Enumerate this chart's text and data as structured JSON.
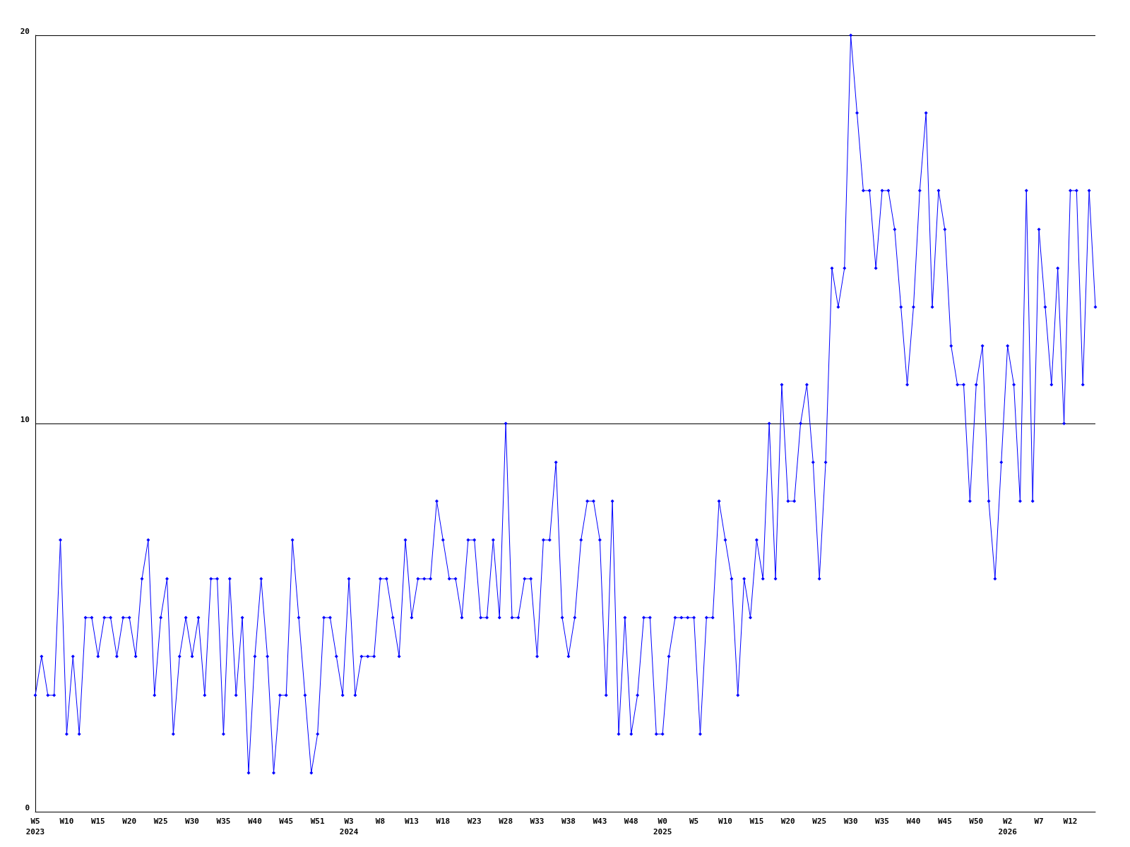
{
  "chart_data": {
    "type": "line",
    "categories": [
      "W5\n2023",
      null,
      null,
      null,
      null,
      "W10",
      null,
      null,
      null,
      null,
      "W15",
      null,
      null,
      null,
      null,
      "W20",
      null,
      null,
      null,
      null,
      "W25",
      null,
      null,
      null,
      null,
      "W30",
      null,
      null,
      null,
      null,
      "W35",
      null,
      null,
      null,
      null,
      "W40",
      null,
      null,
      null,
      null,
      "W45",
      null,
      null,
      null,
      null,
      "W51",
      null,
      null,
      null,
      null,
      "W3\n2024",
      null,
      null,
      null,
      null,
      "W8",
      null,
      null,
      null,
      null,
      "W13",
      null,
      null,
      null,
      null,
      "W18",
      null,
      null,
      null,
      null,
      "W23",
      null,
      null,
      null,
      null,
      "W28",
      null,
      null,
      null,
      null,
      "W33",
      null,
      null,
      null,
      null,
      "W38",
      null,
      null,
      null,
      null,
      "W43",
      null,
      null,
      null,
      null,
      "W48",
      null,
      null,
      null,
      null,
      "W0\n2025",
      null,
      null,
      null,
      null,
      "W5",
      null,
      null,
      null,
      null,
      "W10",
      null,
      null,
      null,
      null,
      "W15",
      null,
      null,
      null,
      null,
      "W20",
      null,
      null,
      null,
      null,
      "W25",
      null,
      null,
      null,
      null,
      "W30",
      null,
      null,
      null,
      null,
      "W35",
      null,
      null,
      null,
      null,
      "W40",
      null,
      null,
      null,
      null,
      "W45",
      null,
      null,
      null,
      null,
      "W50",
      null,
      null,
      null,
      null,
      "W2\n2026",
      null,
      null,
      null,
      null,
      "W7",
      null,
      null,
      null,
      null,
      "W12",
      null,
      null,
      null,
      null
    ],
    "series": [
      {
        "color": "#0000ff",
        "values": [
          3,
          4,
          3,
          3,
          7,
          2,
          4,
          2,
          5,
          5,
          4,
          5,
          5,
          4,
          5,
          5,
          4,
          6,
          7,
          3,
          5,
          6,
          2,
          4,
          5,
          4,
          5,
          3,
          6,
          6,
          2,
          6,
          3,
          5,
          1,
          4,
          6,
          4,
          1,
          3,
          3,
          7,
          5,
          3,
          1,
          2,
          5,
          5,
          4,
          3,
          6,
          3,
          4,
          4,
          4,
          6,
          6,
          5,
          4,
          7,
          5,
          6,
          6,
          6,
          8,
          7,
          6,
          6,
          5,
          7,
          7,
          5,
          5,
          7,
          5,
          10,
          5,
          5,
          6,
          6,
          4,
          7,
          7,
          9,
          5,
          4,
          5,
          7,
          8,
          8,
          7,
          3,
          8,
          2,
          5,
          2,
          3,
          5,
          5,
          2,
          2,
          4,
          5,
          5,
          5,
          5,
          2,
          5,
          5,
          8,
          7,
          6,
          3,
          6,
          5,
          7,
          6,
          10,
          6,
          11,
          8,
          8,
          10,
          11,
          9,
          6,
          9,
          14,
          13,
          14,
          20,
          18,
          16,
          16,
          14,
          16,
          16,
          15,
          13,
          11,
          13,
          16,
          18,
          13,
          16,
          15,
          12,
          11,
          11,
          8,
          11,
          12,
          8,
          6,
          9,
          12,
          11,
          8,
          16,
          8,
          15,
          13,
          11,
          14,
          10,
          16,
          16,
          11,
          16,
          13
        ]
      }
    ],
    "ylim": [
      0,
      20
    ],
    "yticks": [
      0,
      10,
      20
    ],
    "grid": "y",
    "marker": "diamond",
    "line_style": "solid"
  }
}
